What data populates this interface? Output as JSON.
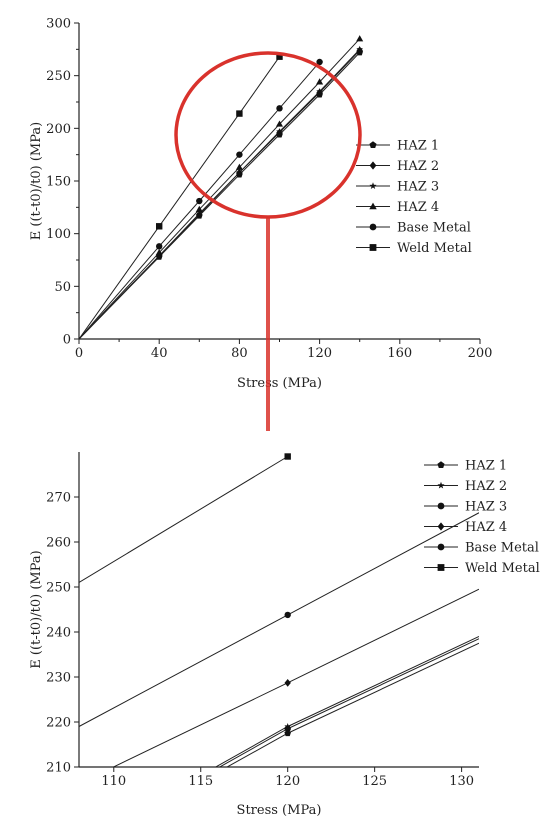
{
  "chart_data": [
    {
      "type": "line",
      "xlabel": "Stress (MPa)",
      "ylabel": "E ((t-t0)/t0) (MPa)",
      "xlim": [
        0,
        200
      ],
      "ylim": [
        0,
        300
      ],
      "xticks": [
        "0",
        "40",
        "80",
        "120",
        "160",
        "200"
      ],
      "yticks": [
        "0",
        "50",
        "100",
        "150",
        "200",
        "250",
        "300"
      ],
      "legend_position": "right",
      "series": [
        {
          "name": "HAZ 1",
          "marker": "pentagon",
          "x": [
            0,
            40,
            60,
            80,
            100,
            120,
            140
          ],
          "y": [
            0,
            78,
            117,
            156,
            194,
            232,
            272
          ]
        },
        {
          "name": "HAZ 2",
          "marker": "diamond",
          "x": [
            0,
            40,
            60,
            80,
            100,
            120,
            140
          ],
          "y": [
            0,
            79,
            118,
            158,
            196,
            234,
            274
          ]
        },
        {
          "name": "HAZ 3",
          "marker": "star",
          "x": [
            0,
            40,
            60,
            80,
            100,
            120,
            140
          ],
          "y": [
            0,
            79,
            119,
            158,
            197,
            235,
            275
          ]
        },
        {
          "name": "HAZ 4",
          "marker": "triangle",
          "x": [
            0,
            40,
            60,
            80,
            100,
            120,
            140
          ],
          "y": [
            0,
            82,
            123,
            163,
            204,
            244,
            285
          ]
        },
        {
          "name": "Base Metal",
          "marker": "circle",
          "x": [
            0,
            40,
            60,
            80,
            100,
            120
          ],
          "y": [
            0,
            88,
            131,
            175,
            219,
            263
          ]
        },
        {
          "name": "Weld Metal",
          "marker": "square",
          "x": [
            0,
            40,
            80,
            100
          ],
          "y": [
            0,
            107,
            214,
            268
          ]
        }
      ]
    },
    {
      "type": "line",
      "xlabel": "Stress (MPa)",
      "ylabel": "E ((t-t0)/t0) (MPa)",
      "xlim": [
        108,
        131
      ],
      "ylim": [
        210,
        280
      ],
      "xticks": [
        "110",
        "115",
        "120",
        "125",
        "130"
      ],
      "yticks": [
        "210",
        "220",
        "230",
        "240",
        "250",
        "260",
        "270"
      ],
      "legend_position": "top-right",
      "series": [
        {
          "name": "HAZ 1",
          "marker": "pentagon",
          "x": [
            115.4,
            120,
            131
          ],
          "y": [
            207.6,
            217.5,
            237.5
          ]
        },
        {
          "name": "HAZ 2",
          "marker": "star",
          "x": [
            115.4,
            120,
            131
          ],
          "y": [
            209.0,
            219.0,
            239.0
          ]
        },
        {
          "name": "HAZ 3",
          "marker": "circle",
          "x": [
            115.4,
            120,
            131
          ],
          "y": [
            208.5,
            218.5,
            238.5
          ]
        },
        {
          "name": "HAZ 4",
          "marker": "diamond",
          "x": [
            108,
            120,
            131
          ],
          "y": [
            206.3,
            228.7,
            249.5
          ]
        },
        {
          "name": "Base Metal",
          "marker": "circle",
          "x": [
            108,
            120,
            131
          ],
          "y": [
            219.0,
            243.8,
            266.5
          ]
        },
        {
          "name": "Weld Metal",
          "marker": "square",
          "x": [
            108,
            120
          ],
          "y": [
            251.0,
            279.0
          ]
        }
      ]
    }
  ]
}
